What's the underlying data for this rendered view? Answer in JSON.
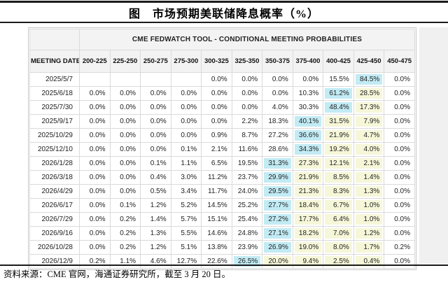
{
  "page": {
    "title": "图　市场预期美联储降息概率（%）",
    "source_note": "资料来源：CME 官网，海通证券研究所，截至 3 月 20 日。"
  },
  "colors": {
    "highlight_primary_cyan": "#c2ebf4",
    "highlight_secondary_yellow": "#f6f6d9",
    "header_bg": "#f3f3f3",
    "grid_line": "#dadada",
    "rule_line": "#1c1c1c"
  },
  "chart_data": {
    "type": "table",
    "title": "CME FEDWATCH TOOL - CONDITIONAL MEETING PROBABILITIES",
    "row_header": "MEETING DATE",
    "columns": [
      "200-225",
      "225-250",
      "250-275",
      "275-300",
      "300-325",
      "325-350",
      "350-375",
      "375-400",
      "400-425",
      "425-450",
      "450-475"
    ],
    "highlight_legend": {
      "c": "cyan highest-probability cell",
      "y": "pale-yellow cell"
    },
    "rows": [
      {
        "date": "2025/5/7",
        "values": [
          "",
          "",
          "",
          "",
          "0.0%",
          "0.0%",
          "0.0%",
          "0.0%",
          "15.5%",
          "84.5%",
          "0.0%"
        ],
        "highlights": [
          "",
          "",
          "",
          "",
          "",
          "",
          "",
          "",
          "",
          "c",
          ""
        ]
      },
      {
        "date": "2025/6/18",
        "values": [
          "0.0%",
          "0.0%",
          "0.0%",
          "0.0%",
          "0.0%",
          "0.0%",
          "0.0%",
          "10.3%",
          "61.2%",
          "28.5%",
          "0.0%"
        ],
        "highlights": [
          "",
          "",
          "",
          "",
          "",
          "",
          "",
          "",
          "c",
          "y",
          ""
        ]
      },
      {
        "date": "2025/7/30",
        "values": [
          "0.0%",
          "0.0%",
          "0.0%",
          "0.0%",
          "0.0%",
          "0.0%",
          "4.0%",
          "30.3%",
          "48.4%",
          "17.3%",
          "0.0%"
        ],
        "highlights": [
          "",
          "",
          "",
          "",
          "",
          "",
          "",
          "",
          "c",
          "y",
          ""
        ]
      },
      {
        "date": "2025/9/17",
        "values": [
          "0.0%",
          "0.0%",
          "0.0%",
          "0.0%",
          "0.0%",
          "2.2%",
          "18.3%",
          "40.1%",
          "31.5%",
          "7.9%",
          "0.0%"
        ],
        "highlights": [
          "",
          "",
          "",
          "",
          "",
          "",
          "",
          "c",
          "y",
          "y",
          ""
        ]
      },
      {
        "date": "2025/10/29",
        "values": [
          "0.0%",
          "0.0%",
          "0.0%",
          "0.0%",
          "0.9%",
          "8.7%",
          "27.2%",
          "36.6%",
          "21.9%",
          "4.7%",
          "0.0%"
        ],
        "highlights": [
          "",
          "",
          "",
          "",
          "",
          "",
          "",
          "c",
          "y",
          "y",
          ""
        ]
      },
      {
        "date": "2025/12/10",
        "values": [
          "0.0%",
          "0.0%",
          "0.0%",
          "0.1%",
          "2.1%",
          "11.6%",
          "28.6%",
          "34.3%",
          "19.2%",
          "4.0%",
          "0.0%"
        ],
        "highlights": [
          "",
          "",
          "",
          "",
          "",
          "",
          "",
          "c",
          "y",
          "y",
          ""
        ]
      },
      {
        "date": "2026/1/28",
        "values": [
          "0.0%",
          "0.0%",
          "0.1%",
          "1.1%",
          "6.5%",
          "19.5%",
          "31.3%",
          "27.3%",
          "12.1%",
          "2.1%",
          "0.0%"
        ],
        "highlights": [
          "",
          "",
          "",
          "",
          "",
          "",
          "c",
          "y",
          "y",
          "y",
          ""
        ]
      },
      {
        "date": "2026/3/18",
        "values": [
          "0.0%",
          "0.0%",
          "0.4%",
          "3.0%",
          "11.2%",
          "23.7%",
          "29.9%",
          "21.9%",
          "8.5%",
          "1.4%",
          "0.0%"
        ],
        "highlights": [
          "",
          "",
          "",
          "",
          "",
          "",
          "c",
          "y",
          "y",
          "y",
          ""
        ]
      },
      {
        "date": "2026/4/29",
        "values": [
          "0.0%",
          "0.0%",
          "0.5%",
          "3.4%",
          "11.7%",
          "24.0%",
          "29.5%",
          "21.3%",
          "8.3%",
          "1.3%",
          "0.0%"
        ],
        "highlights": [
          "",
          "",
          "",
          "",
          "",
          "",
          "c",
          "y",
          "y",
          "y",
          ""
        ]
      },
      {
        "date": "2026/6/17",
        "values": [
          "0.0%",
          "0.1%",
          "1.2%",
          "5.2%",
          "14.5%",
          "25.2%",
          "27.7%",
          "18.4%",
          "6.7%",
          "1.0%",
          "0.0%"
        ],
        "highlights": [
          "",
          "",
          "",
          "",
          "",
          "",
          "c",
          "y",
          "y",
          "y",
          ""
        ]
      },
      {
        "date": "2026/7/29",
        "values": [
          "0.0%",
          "0.2%",
          "1.4%",
          "5.7%",
          "15.1%",
          "25.4%",
          "27.2%",
          "17.7%",
          "6.4%",
          "1.0%",
          "0.0%"
        ],
        "highlights": [
          "",
          "",
          "",
          "",
          "",
          "",
          "c",
          "y",
          "y",
          "y",
          ""
        ]
      },
      {
        "date": "2026/9/16",
        "values": [
          "0.0%",
          "0.2%",
          "1.3%",
          "5.5%",
          "14.6%",
          "24.8%",
          "27.1%",
          "18.2%",
          "7.0%",
          "1.2%",
          "0.0%"
        ],
        "highlights": [
          "",
          "",
          "",
          "",
          "",
          "",
          "c",
          "y",
          "y",
          "y",
          ""
        ]
      },
      {
        "date": "2026/10/28",
        "values": [
          "0.0%",
          "0.2%",
          "1.2%",
          "5.1%",
          "13.8%",
          "23.9%",
          "26.9%",
          "19.0%",
          "8.0%",
          "1.7%",
          "0.2%"
        ],
        "highlights": [
          "",
          "",
          "",
          "",
          "",
          "",
          "c",
          "y",
          "y",
          "y",
          ""
        ]
      },
      {
        "date": "2026/12/9",
        "values": [
          "0.2%",
          "1.1%",
          "4.6%",
          "12.7%",
          "22.6%",
          "26.5%",
          "20.0%",
          "9.4%",
          "2.5%",
          "0.4%",
          "0.0%"
        ],
        "highlights": [
          "",
          "",
          "",
          "",
          "",
          "c",
          "y",
          "y",
          "y",
          "y",
          ""
        ]
      }
    ]
  }
}
